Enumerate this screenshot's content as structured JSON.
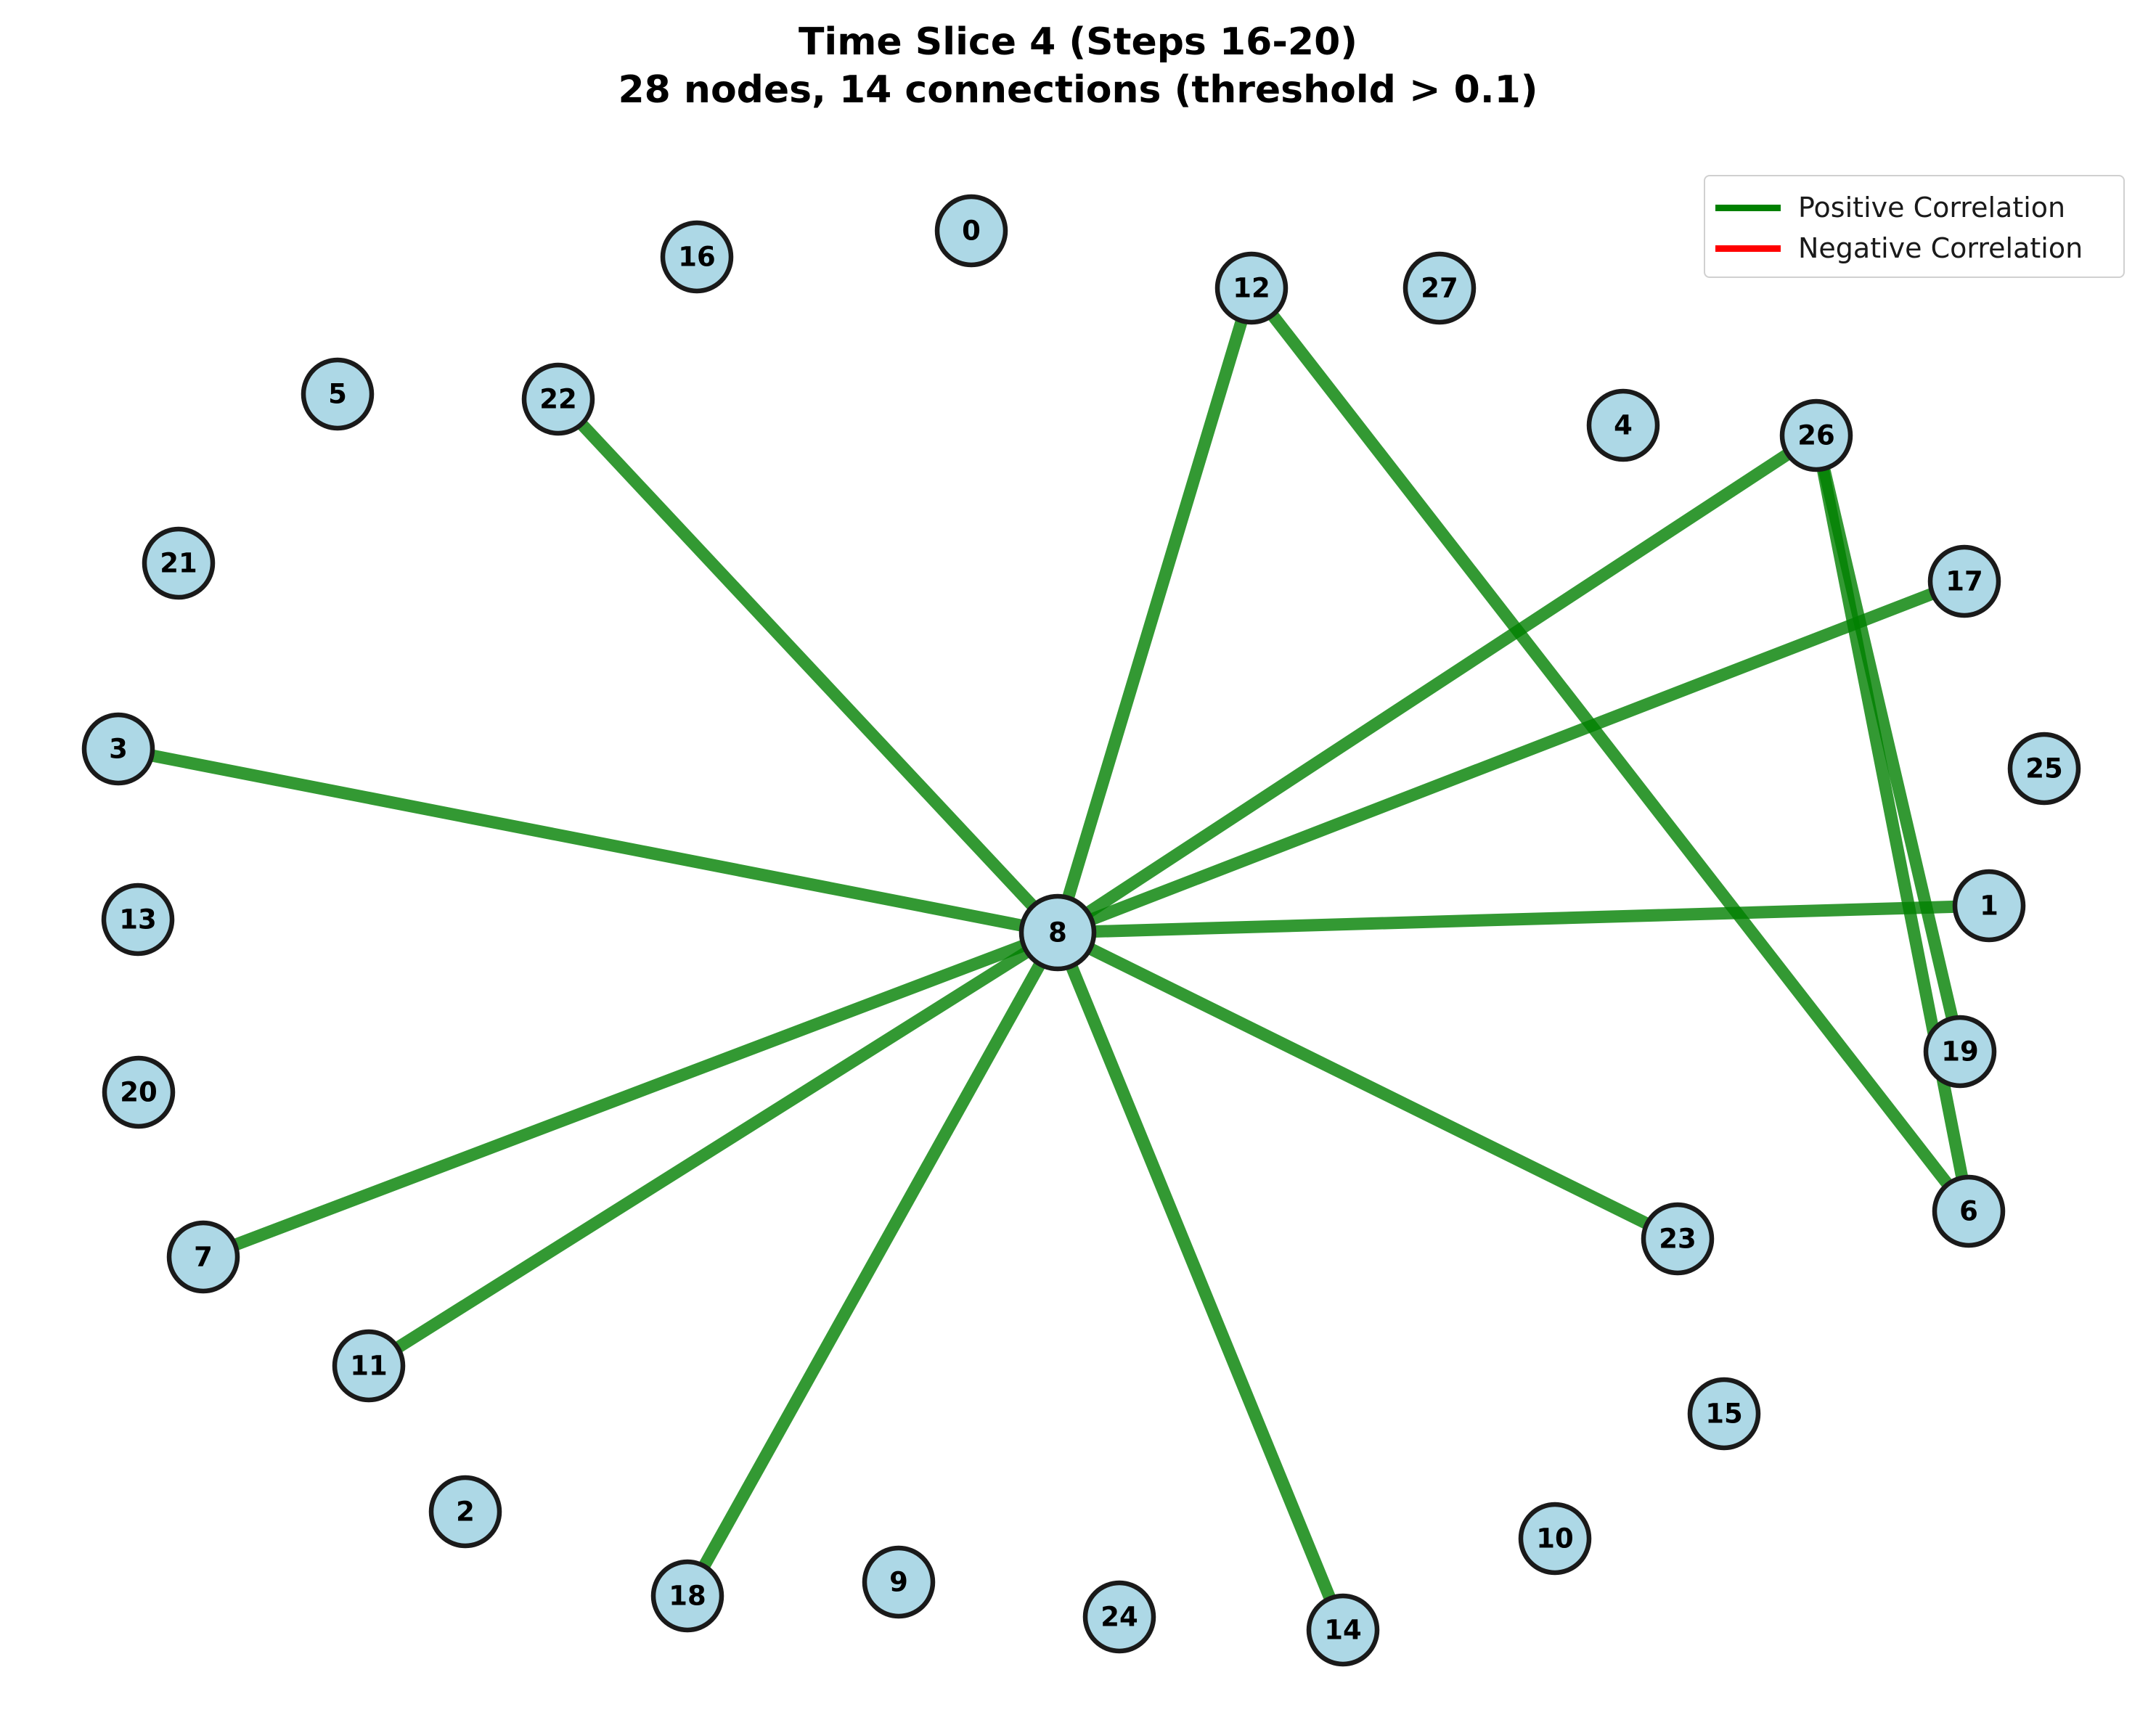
{
  "title": {
    "line1": "Time Slice 4 (Steps 16-20)",
    "line2": "28 nodes, 14 connections (threshold > 0.1)"
  },
  "legend": {
    "items": [
      {
        "label": "Positive Correlation",
        "color": "#008000"
      },
      {
        "label": "Negative Correlation",
        "color": "#ff0000"
      }
    ]
  },
  "colors": {
    "node_fill": "#add8e6",
    "node_stroke": "#1a1a1a",
    "positive_edge": "#008000",
    "negative_edge": "#ff0000"
  },
  "nodes": [
    "0",
    "1",
    "2",
    "3",
    "4",
    "5",
    "6",
    "7",
    "8",
    "9",
    "10",
    "11",
    "12",
    "13",
    "14",
    "15",
    "16",
    "17",
    "18",
    "19",
    "20",
    "21",
    "22",
    "23",
    "24",
    "25",
    "26",
    "27"
  ],
  "edges": [
    {
      "source": "8",
      "target": "3",
      "sign": "positive"
    },
    {
      "source": "8",
      "target": "22",
      "sign": "positive"
    },
    {
      "source": "8",
      "target": "12",
      "sign": "positive"
    },
    {
      "source": "8",
      "target": "26",
      "sign": "positive"
    },
    {
      "source": "8",
      "target": "17",
      "sign": "positive"
    },
    {
      "source": "8",
      "target": "1",
      "sign": "positive"
    },
    {
      "source": "8",
      "target": "23",
      "sign": "positive"
    },
    {
      "source": "8",
      "target": "14",
      "sign": "positive"
    },
    {
      "source": "8",
      "target": "18",
      "sign": "positive"
    },
    {
      "source": "8",
      "target": "11",
      "sign": "positive"
    },
    {
      "source": "8",
      "target": "7",
      "sign": "positive"
    },
    {
      "source": "12",
      "target": "6",
      "sign": "positive"
    },
    {
      "source": "26",
      "target": "19",
      "sign": "positive"
    },
    {
      "source": "26",
      "target": "6",
      "sign": "positive"
    }
  ]
}
